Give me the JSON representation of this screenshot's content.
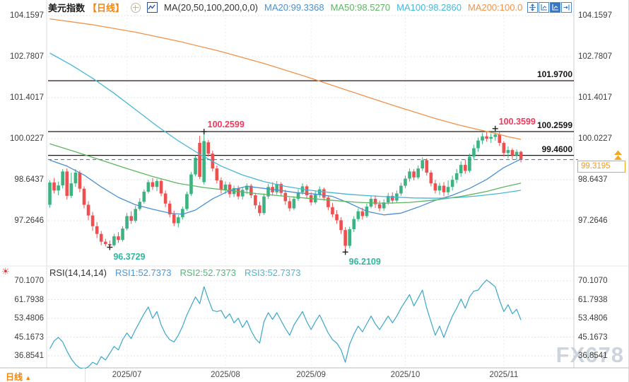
{
  "header": {
    "symbol": "美元指数",
    "period_tag": "【日线】",
    "ma_label": "MA(20,50,100,200,0,0)",
    "toolbar_icons": [
      "pan-crosshair-icon",
      "axis-scale-icon",
      "chart-scale-active-icon",
      "collapse-right-icon"
    ]
  },
  "rsi_header": {
    "label": "RSI(14,14,14)",
    "values": [
      {
        "label": "RSI1:52.7373",
        "color": "#4a96d8"
      },
      {
        "label": "RSI2:52.7373",
        "color": "#52b878"
      },
      {
        "label": "RSI3:52.7373",
        "color": "#45b8d8"
      }
    ]
  },
  "footer": {
    "period_label": "日线",
    "period_arrow": "▲"
  },
  "watermark": "FX678",
  "price_box_label": "99.3195",
  "chart_data": {
    "type": "candlestick",
    "title": "美元指数【日线】",
    "legend_position": "top",
    "grid": true,
    "x_axis": {
      "labels": [
        "2025/07",
        "2025/08",
        "2025/09",
        "2025/10",
        "2025/11"
      ],
      "tick_days": [
        18,
        41,
        61,
        83,
        106
      ]
    },
    "price_axis_ticks": [
      104.1597,
      102.7807,
      101.4017,
      100.0227,
      98.6437,
      97.2646
    ],
    "rsi_axis_ticks": [
      70.107,
      61.7938,
      53.4806,
      45.1673,
      36.8541
    ],
    "horizontal_levels": [
      101.97,
      100.2599,
      99.46
    ],
    "current_price": 99.3195,
    "colors": {
      "up": "#3db382",
      "down": "#f04f4f",
      "dashed_price_line": "#3f7fd4",
      "price_box": "#f5a623",
      "level_line": "#251414",
      "rsi_line": "#3aa7c9",
      "annotation_high": "#ef3a5d",
      "annotation_low": "#2eb79c"
    },
    "ma_lines": [
      {
        "name": "MA20",
        "label": "MA20:99.3368",
        "color": "#4a90d0",
        "points": [
          [
            0,
            99.3
          ],
          [
            4,
            99.1
          ],
          [
            8,
            98.8
          ],
          [
            12,
            98.4
          ],
          [
            16,
            98.05
          ],
          [
            20,
            97.8
          ],
          [
            24,
            97.65
          ],
          [
            28,
            97.52
          ],
          [
            31,
            97.48
          ],
          [
            34,
            97.62
          ],
          [
            38,
            98.0
          ],
          [
            42,
            98.28
          ],
          [
            46,
            98.42
          ],
          [
            50,
            98.35
          ],
          [
            54,
            98.28
          ],
          [
            58,
            98.2
          ],
          [
            62,
            98.16
          ],
          [
            66,
            98.08
          ],
          [
            70,
            97.85
          ],
          [
            74,
            97.58
          ],
          [
            78,
            97.46
          ],
          [
            82,
            97.52
          ],
          [
            86,
            97.72
          ],
          [
            90,
            97.95
          ],
          [
            94,
            98.12
          ],
          [
            98,
            98.35
          ],
          [
            102,
            98.65
          ],
          [
            106,
            99.05
          ],
          [
            110,
            99.3368
          ]
        ]
      },
      {
        "name": "MA50",
        "label": "MA50:98.5270",
        "color": "#5cb660",
        "points": [
          [
            0,
            99.85
          ],
          [
            6,
            99.58
          ],
          [
            12,
            99.3
          ],
          [
            18,
            99.02
          ],
          [
            24,
            98.75
          ],
          [
            30,
            98.52
          ],
          [
            36,
            98.38
          ],
          [
            42,
            98.28
          ],
          [
            48,
            98.18
          ],
          [
            54,
            98.1
          ],
          [
            60,
            98.02
          ],
          [
            66,
            97.95
          ],
          [
            72,
            97.88
          ],
          [
            78,
            97.85
          ],
          [
            84,
            97.88
          ],
          [
            90,
            97.96
          ],
          [
            96,
            98.08
          ],
          [
            102,
            98.25
          ],
          [
            106,
            98.4
          ],
          [
            110,
            98.527
          ]
        ]
      },
      {
        "name": "MA100",
        "label": "MA100:98.2860",
        "color": "#45b8d8",
        "points": [
          [
            0,
            102.9
          ],
          [
            5,
            102.5
          ],
          [
            10,
            102.05
          ],
          [
            15,
            101.55
          ],
          [
            20,
            101.0
          ],
          [
            25,
            100.45
          ],
          [
            30,
            99.95
          ],
          [
            35,
            99.5
          ],
          [
            40,
            99.1
          ],
          [
            45,
            98.8
          ],
          [
            50,
            98.58
          ],
          [
            55,
            98.42
          ],
          [
            60,
            98.3
          ],
          [
            65,
            98.22
          ],
          [
            70,
            98.15
          ],
          [
            75,
            98.1
          ],
          [
            80,
            98.06
          ],
          [
            85,
            98.03
          ],
          [
            90,
            98.02
          ],
          [
            95,
            98.04
          ],
          [
            100,
            98.1
          ],
          [
            105,
            98.18
          ],
          [
            110,
            98.286
          ]
        ]
      },
      {
        "name": "MA200",
        "label": "MA200:100.0",
        "color": "#f0924a",
        "points": [
          [
            0,
            104.05
          ],
          [
            10,
            103.85
          ],
          [
            20,
            103.6
          ],
          [
            30,
            103.3
          ],
          [
            40,
            102.95
          ],
          [
            50,
            102.55
          ],
          [
            60,
            102.1
          ],
          [
            70,
            101.62
          ],
          [
            80,
            101.15
          ],
          [
            90,
            100.7
          ],
          [
            95,
            100.5
          ],
          [
            100,
            100.33
          ],
          [
            104,
            100.2
          ],
          [
            107,
            100.09
          ],
          [
            110,
            100.0
          ]
        ]
      }
    ],
    "annotations": [
      {
        "text": "100.2599",
        "kind": "high",
        "day": 36,
        "price": 100.2599
      },
      {
        "text": "100.3599",
        "kind": "high",
        "day": 104,
        "price": 100.3599
      },
      {
        "text": "96.3729",
        "kind": "low",
        "day": 14,
        "price": 96.3729
      },
      {
        "text": "96.2109",
        "kind": "low",
        "day": 69,
        "price": 96.2109
      }
    ],
    "candles_ohlc": [
      [
        97.8,
        98.62,
        97.7,
        98.55
      ],
      [
        98.55,
        98.7,
        98.18,
        98.28
      ],
      [
        98.28,
        98.58,
        98.12,
        98.45
      ],
      [
        98.45,
        99.0,
        98.35,
        98.92
      ],
      [
        98.92,
        99.02,
        97.98,
        98.1
      ],
      [
        98.1,
        98.88,
        98.02,
        98.52
      ],
      [
        98.52,
        99.0,
        98.4,
        98.88
      ],
      [
        98.88,
        98.95,
        98.22,
        98.34
      ],
      [
        98.34,
        98.42,
        97.68,
        97.8
      ],
      [
        97.8,
        97.92,
        97.28,
        97.44
      ],
      [
        97.44,
        97.56,
        96.92,
        97.08
      ],
      [
        97.08,
        97.22,
        96.68,
        96.82
      ],
      [
        96.82,
        96.92,
        96.44,
        96.56
      ],
      [
        96.56,
        96.66,
        96.4,
        96.48
      ],
      [
        96.48,
        96.6,
        96.3729,
        96.44
      ],
      [
        96.44,
        96.82,
        96.4,
        96.74
      ],
      [
        96.74,
        96.88,
        96.52,
        96.62
      ],
      [
        96.62,
        97.08,
        96.56,
        97.0
      ],
      [
        97.0,
        97.52,
        96.94,
        97.42
      ],
      [
        97.42,
        97.58,
        97.16,
        97.26
      ],
      [
        97.26,
        97.76,
        97.2,
        97.66
      ],
      [
        97.66,
        98.02,
        97.6,
        97.9
      ],
      [
        97.9,
        98.32,
        97.84,
        98.24
      ],
      [
        98.24,
        98.64,
        98.18,
        98.56
      ],
      [
        98.56,
        98.7,
        98.3,
        98.4
      ],
      [
        98.4,
        98.68,
        98.26,
        98.6
      ],
      [
        98.6,
        98.66,
        98.08,
        98.18
      ],
      [
        98.18,
        98.28,
        97.72,
        97.84
      ],
      [
        97.84,
        97.94,
        97.38,
        97.48
      ],
      [
        97.48,
        97.6,
        97.08,
        97.18
      ],
      [
        97.18,
        97.46,
        97.04,
        97.38
      ],
      [
        97.38,
        97.74,
        97.3,
        97.66
      ],
      [
        97.66,
        98.24,
        97.6,
        98.16
      ],
      [
        98.16,
        98.9,
        98.1,
        98.82
      ],
      [
        98.82,
        99.46,
        98.76,
        99.38
      ],
      [
        99.88,
        100.12,
        98.66,
        98.74
      ],
      [
        98.56,
        100.2599,
        98.48,
        99.94
      ],
      [
        99.9,
        99.98,
        99.42,
        99.52
      ],
      [
        99.52,
        99.62,
        98.92,
        99.02
      ],
      [
        99.02,
        99.12,
        98.52,
        98.62
      ],
      [
        98.62,
        98.72,
        98.18,
        98.3
      ],
      [
        98.3,
        98.58,
        98.16,
        98.48
      ],
      [
        98.48,
        98.56,
        98.04,
        98.16
      ],
      [
        98.16,
        98.44,
        98.06,
        98.36
      ],
      [
        98.36,
        98.44,
        97.98,
        98.08
      ],
      [
        98.08,
        98.4,
        97.98,
        98.3
      ],
      [
        98.3,
        98.52,
        98.16,
        98.44
      ],
      [
        98.44,
        98.5,
        98.02,
        98.12
      ],
      [
        98.12,
        98.2,
        97.66,
        97.78
      ],
      [
        97.78,
        97.9,
        97.42,
        97.52
      ],
      [
        97.52,
        98.18,
        97.46,
        98.08
      ],
      [
        98.08,
        98.5,
        98.0,
        98.4
      ],
      [
        98.4,
        98.56,
        98.12,
        98.22
      ],
      [
        98.22,
        98.6,
        98.14,
        98.5
      ],
      [
        98.5,
        98.56,
        98.1,
        98.2
      ],
      [
        98.2,
        98.3,
        97.8,
        97.92
      ],
      [
        97.92,
        98.04,
        97.58,
        97.68
      ],
      [
        97.68,
        98.08,
        97.62,
        98.0
      ],
      [
        98.0,
        98.32,
        97.92,
        98.22
      ],
      [
        98.22,
        98.52,
        98.14,
        98.42
      ],
      [
        98.42,
        98.48,
        98.02,
        98.12
      ],
      [
        98.12,
        98.22,
        97.78,
        97.88
      ],
      [
        97.88,
        98.26,
        97.82,
        98.14
      ],
      [
        98.14,
        98.42,
        98.04,
        98.32
      ],
      [
        98.32,
        98.38,
        97.94,
        98.04
      ],
      [
        98.04,
        98.12,
        97.62,
        97.72
      ],
      [
        97.72,
        97.86,
        97.38,
        97.48
      ],
      [
        97.48,
        97.62,
        97.16,
        97.28
      ],
      [
        97.28,
        97.38,
        96.82,
        96.95
      ],
      [
        96.95,
        97.05,
        96.2109,
        96.42
      ],
      [
        96.42,
        97.06,
        96.34,
        96.98
      ],
      [
        96.98,
        97.42,
        96.88,
        97.32
      ],
      [
        97.32,
        97.68,
        97.24,
        97.58
      ],
      [
        97.58,
        97.7,
        97.3,
        97.42
      ],
      [
        97.42,
        97.84,
        97.36,
        97.74
      ],
      [
        97.74,
        98.1,
        97.68,
        98.0
      ],
      [
        98.0,
        98.12,
        97.7,
        97.82
      ],
      [
        97.82,
        97.94,
        97.58,
        97.68
      ],
      [
        97.68,
        97.98,
        97.6,
        97.88
      ],
      [
        97.88,
        98.2,
        97.8,
        98.1
      ],
      [
        98.1,
        98.22,
        97.84,
        97.94
      ],
      [
        97.94,
        98.28,
        97.88,
        98.18
      ],
      [
        98.18,
        98.54,
        98.1,
        98.44
      ],
      [
        98.44,
        98.78,
        98.36,
        98.68
      ],
      [
        98.68,
        99.02,
        98.58,
        98.92
      ],
      [
        98.92,
        99.0,
        98.62,
        98.72
      ],
      [
        98.72,
        99.12,
        98.66,
        99.02
      ],
      [
        99.02,
        99.4,
        98.94,
        99.3
      ],
      [
        99.3,
        99.36,
        98.78,
        98.88
      ],
      [
        98.88,
        98.96,
        98.42,
        98.52
      ],
      [
        98.52,
        98.64,
        98.18,
        98.28
      ],
      [
        98.28,
        98.54,
        98.14,
        98.44
      ],
      [
        98.44,
        98.56,
        98.08,
        98.22
      ],
      [
        98.22,
        98.62,
        98.12,
        98.4
      ],
      [
        98.4,
        98.78,
        98.28,
        98.64
      ],
      [
        98.64,
        99.0,
        98.52,
        98.86
      ],
      [
        98.86,
        99.26,
        98.74,
        99.14
      ],
      [
        99.14,
        99.32,
        98.84,
        98.94
      ],
      [
        98.94,
        99.52,
        98.88,
        99.42
      ],
      [
        99.42,
        99.82,
        99.32,
        99.7
      ],
      [
        99.7,
        100.06,
        99.58,
        99.96
      ],
      [
        99.96,
        100.22,
        99.84,
        100.1
      ],
      [
        100.1,
        100.26,
        99.92,
        100.02
      ],
      [
        100.02,
        100.2,
        99.88,
        100.08
      ],
      [
        100.08,
        100.3599,
        99.96,
        100.16
      ],
      [
        100.16,
        100.24,
        99.78,
        99.88
      ],
      [
        99.88,
        99.94,
        99.42,
        99.54
      ],
      [
        99.54,
        99.76,
        99.36,
        99.64
      ],
      [
        99.64,
        99.7,
        99.34,
        99.46
      ],
      [
        99.46,
        99.66,
        99.3,
        99.58
      ],
      [
        99.58,
        99.62,
        99.22,
        99.3195
      ]
    ],
    "rsi_values": [
      40,
      43.5,
      45,
      43,
      39,
      35.5,
      33,
      31.5,
      31,
      32,
      34,
      33,
      36.5,
      35,
      38,
      41,
      39.5,
      44,
      47,
      44.5,
      48.5,
      52,
      55.5,
      58.5,
      53.5,
      56.5,
      50.5,
      46.5,
      44,
      43,
      46,
      50,
      55,
      59,
      63,
      60,
      67.5,
      62,
      57,
      56.5,
      57,
      53.5,
      55.5,
      51.5,
      53.5,
      49.5,
      52.5,
      48,
      44.5,
      42.5,
      52,
      56,
      53,
      56,
      52.5,
      49,
      46,
      50.5,
      53.5,
      56.5,
      52,
      48.5,
      52,
      55,
      51,
      47,
      44,
      42.5,
      39.5,
      34,
      42,
      46.5,
      50,
      47.5,
      51,
      54.5,
      51,
      48.5,
      51.5,
      54.5,
      51.5,
      54.5,
      58,
      61,
      64,
      59,
      62.5,
      66,
      58,
      52,
      46,
      50,
      45,
      50,
      54.5,
      58,
      62,
      58,
      63,
      65.5,
      66,
      68.5,
      70.5,
      69,
      67.5,
      61.5,
      56.5,
      59.5,
      55.5,
      57.5,
      52.7373
    ]
  }
}
